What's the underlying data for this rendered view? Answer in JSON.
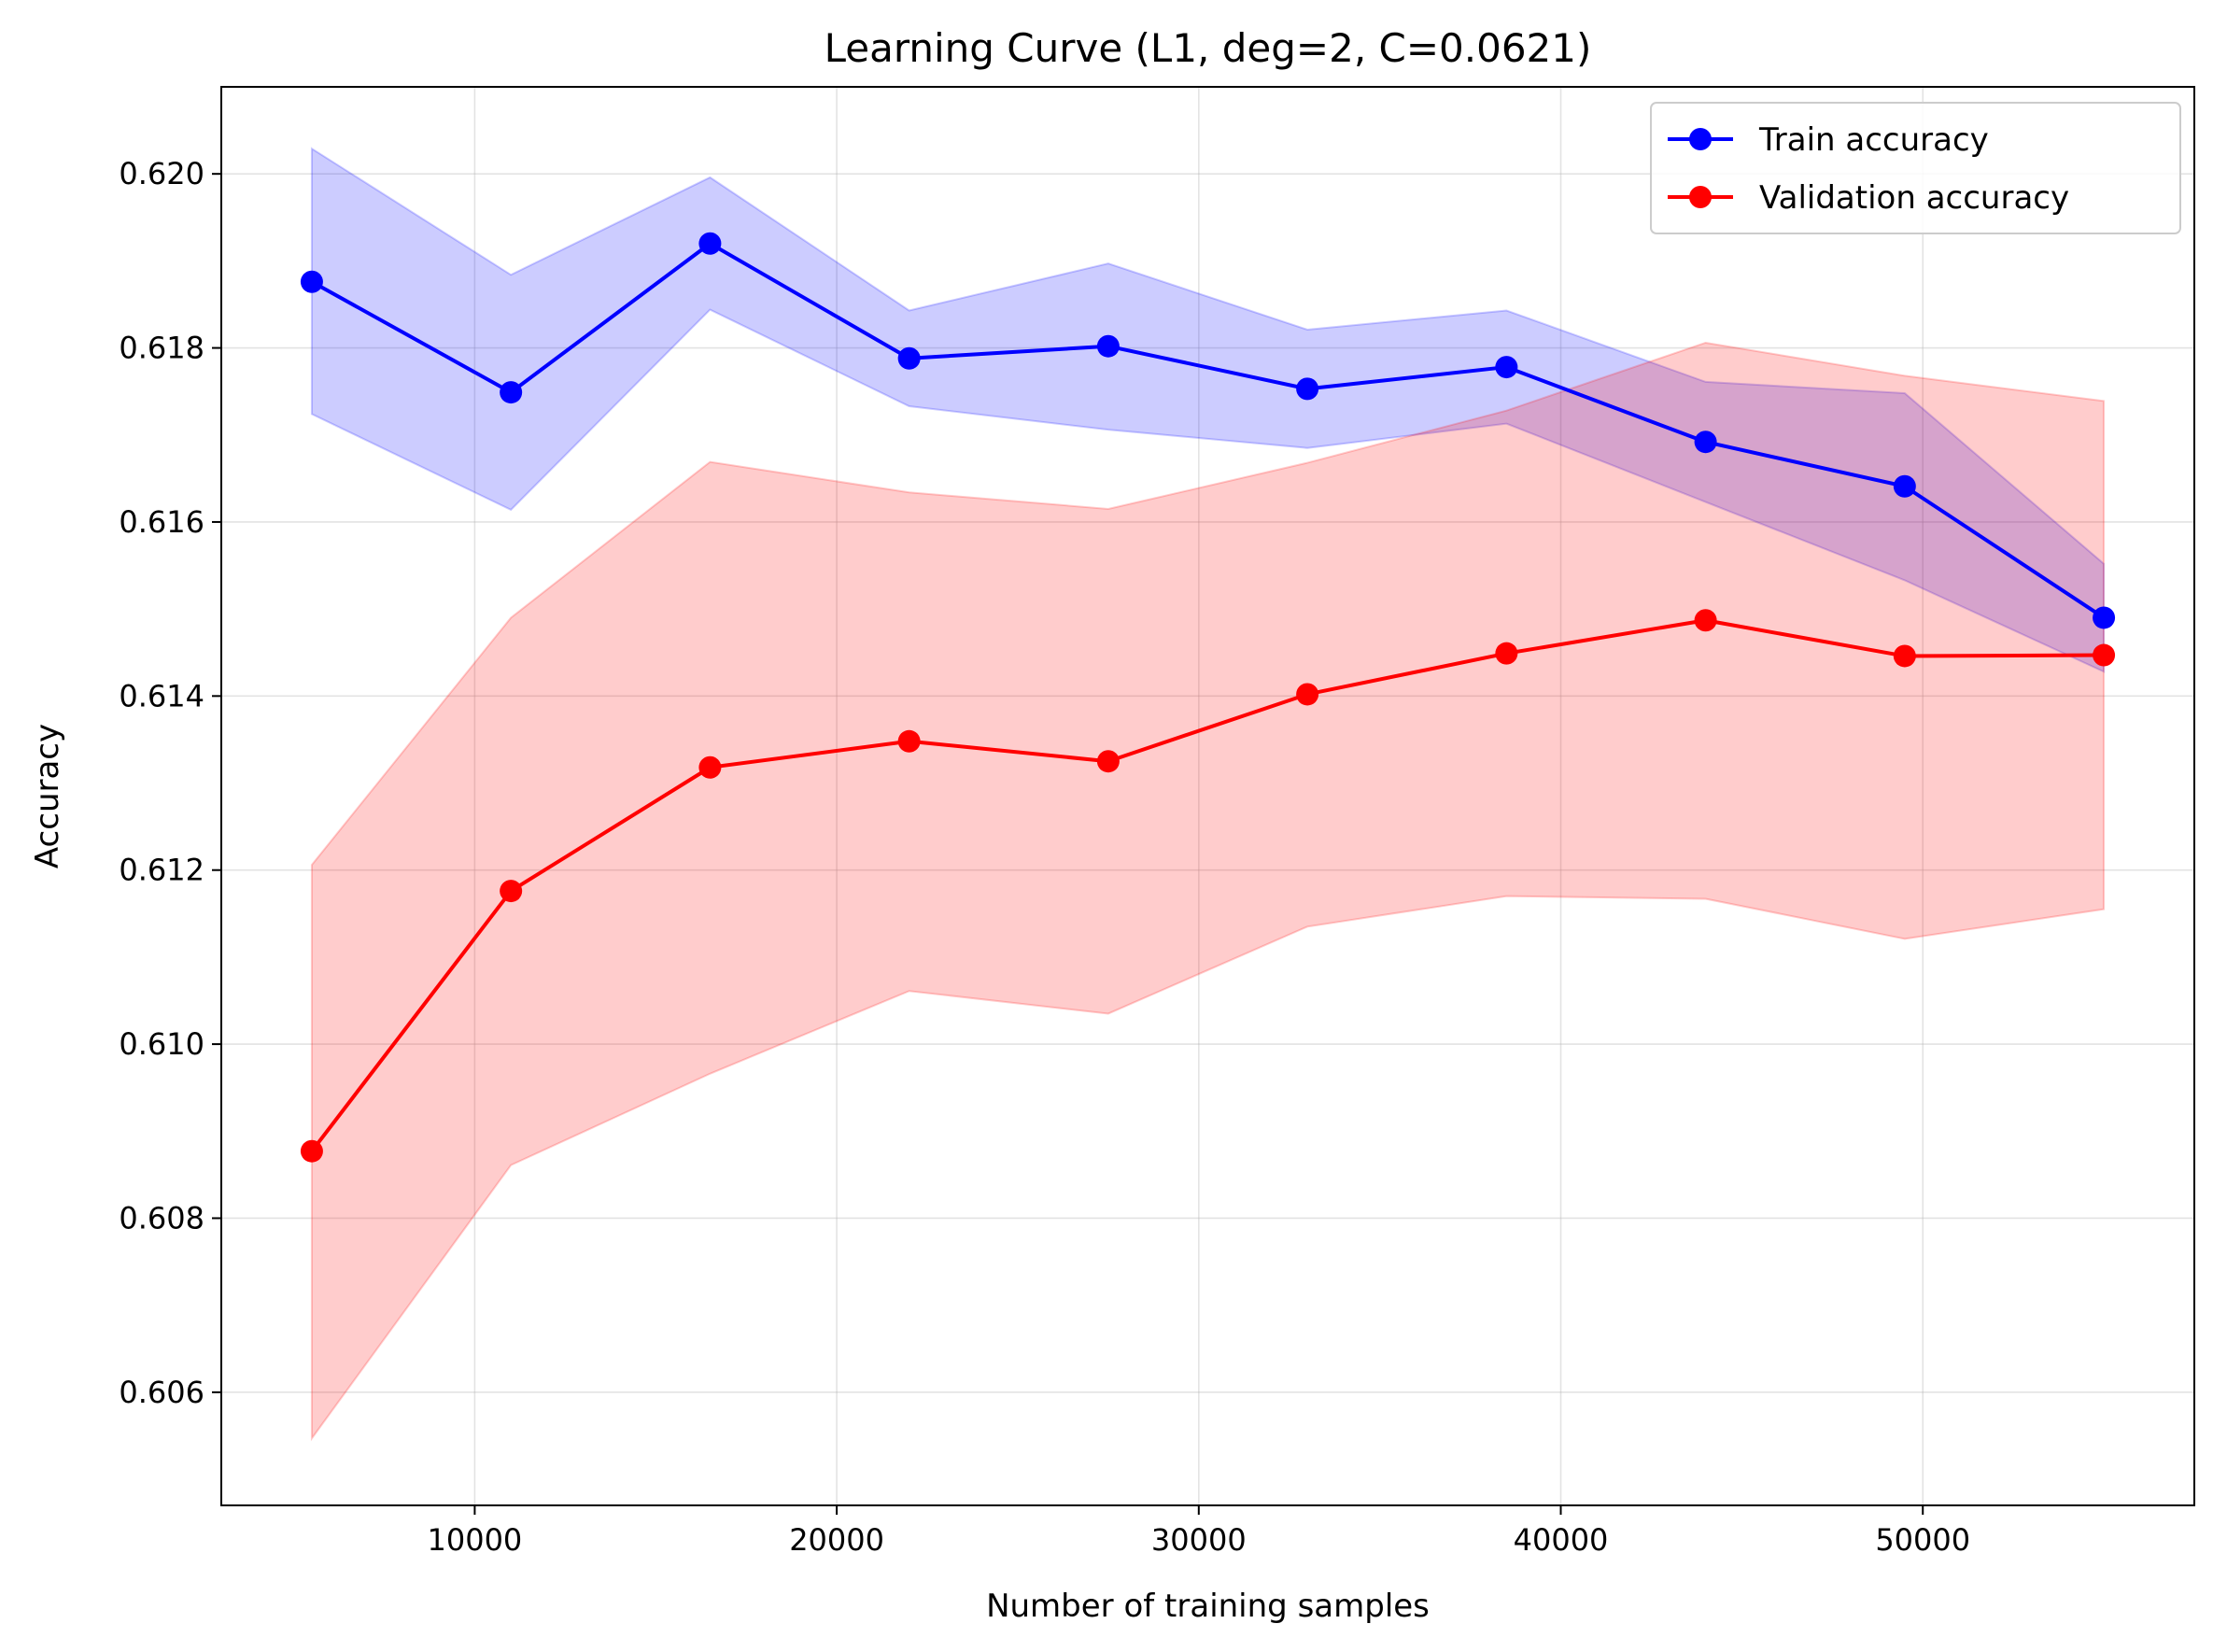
{
  "chart_data": {
    "type": "line",
    "title": "Learning Curve (L1, deg=2, C=0.0621)",
    "xlabel": "Number of training samples",
    "ylabel": "Accuracy",
    "xlim": [
      3000,
      57500
    ],
    "ylim": [
      0.6047,
      0.621
    ],
    "xticks": [
      10000,
      20000,
      30000,
      40000,
      50000
    ],
    "xtick_labels": [
      "10000",
      "20000",
      "30000",
      "40000",
      "50000"
    ],
    "yticks": [
      0.606,
      0.608,
      0.61,
      0.612,
      0.614,
      0.616,
      0.618,
      0.62
    ],
    "ytick_labels": [
      "0.606",
      "0.608",
      "0.610",
      "0.612",
      "0.614",
      "0.616",
      "0.618",
      "0.620"
    ],
    "grid": true,
    "legend_position": "top-right",
    "x": [
      5500,
      11000,
      16500,
      22000,
      27500,
      33000,
      38500,
      44000,
      49500,
      55000
    ],
    "series": [
      {
        "name": "Train accuracy",
        "color": "#0000ff",
        "band_color": "#0000ff",
        "values": [
          0.61876,
          0.61749,
          0.6192,
          0.61788,
          0.61802,
          0.61753,
          0.61778,
          0.61692,
          0.61641,
          0.6149
        ],
        "upper": [
          0.62029,
          0.61884,
          0.61996,
          0.61843,
          0.61897,
          0.61821,
          0.61843,
          0.61761,
          0.61748,
          0.61552
        ],
        "lower": [
          0.61724,
          0.61614,
          0.61844,
          0.61733,
          0.61706,
          0.61685,
          0.61713,
          0.61623,
          0.61533,
          0.61428
        ]
      },
      {
        "name": "Validation accuracy",
        "color": "#ff0000",
        "band_color": "#ff0000",
        "values": [
          0.60877,
          0.61176,
          0.61318,
          0.61348,
          0.61325,
          0.61402,
          0.61449,
          0.61487,
          0.61446,
          0.61447
        ],
        "upper": [
          0.61206,
          0.6149,
          0.61669,
          0.61634,
          0.61615,
          0.61668,
          0.61728,
          0.61806,
          0.61768,
          0.61739
        ],
        "lower": [
          0.60547,
          0.60861,
          0.60966,
          0.61061,
          0.61035,
          0.61135,
          0.6117,
          0.61167,
          0.61121,
          0.61155
        ]
      }
    ]
  }
}
